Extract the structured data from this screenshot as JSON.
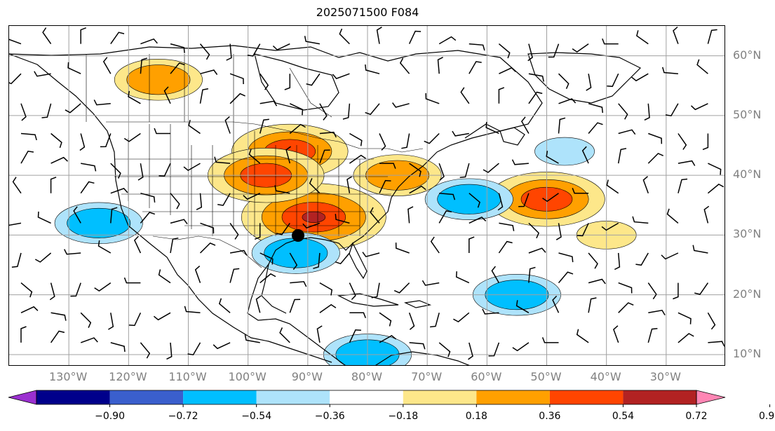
{
  "title": "2025071500 F084",
  "map": {
    "lat_labels": [
      {
        "text": "60°N",
        "lat": 60
      },
      {
        "text": "50°N",
        "lat": 50
      },
      {
        "text": "40°N",
        "lat": 40
      },
      {
        "text": "30°N",
        "lat": 30
      },
      {
        "text": "20°N",
        "lat": 20
      },
      {
        "text": "10°N",
        "lat": 10
      }
    ],
    "lon_labels": [
      {
        "text": "130°W",
        "lon": -130
      },
      {
        "text": "120°W",
        "lon": -120
      },
      {
        "text": "110°W",
        "lon": -110
      },
      {
        "text": "100°W",
        "lon": -100
      },
      {
        "text": "90°W",
        "lon": -90
      },
      {
        "text": "80°W",
        "lon": -80
      },
      {
        "text": "70°W",
        "lon": -70
      },
      {
        "text": "60°W",
        "lon": -60
      },
      {
        "text": "50°W",
        "lon": -50
      },
      {
        "text": "40°W",
        "lon": -40
      },
      {
        "text": "30°W",
        "lon": -30
      }
    ],
    "gridlines": true,
    "extent": {
      "lon_min": -140,
      "lon_max": -20,
      "lat_min": 8,
      "lat_max": 65
    }
  },
  "colorbar": {
    "ticks": [
      "−0.90",
      "−0.72",
      "−0.54",
      "−0.36",
      "−0.18",
      "0.18",
      "0.36",
      "0.54",
      "0.72",
      "0.90"
    ],
    "colors": [
      "#9b30d0",
      "#00008b",
      "#3a5fcd",
      "#00bfff",
      "#aee3fb",
      "#ffffff",
      "#fde78a",
      "#ffa000",
      "#ff4500",
      "#b22222",
      "#ff86b4"
    ],
    "extend": "both"
  },
  "chart_data": {
    "type": "heatmap",
    "title": "2025071500 F084",
    "levels": [
      -0.9,
      -0.72,
      -0.54,
      -0.36,
      -0.18,
      0.18,
      0.36,
      0.54,
      0.72,
      0.9
    ],
    "positive_regions": [
      {
        "lon": -89,
        "lat": 33,
        "peak": 0.72
      },
      {
        "lon": -93,
        "lat": 44,
        "peak": 0.54
      },
      {
        "lon": -97,
        "lat": 40,
        "peak": 0.54
      },
      {
        "lon": -50,
        "lat": 36,
        "peak": 0.54
      },
      {
        "lon": -115,
        "lat": 56,
        "peak": 0.36
      },
      {
        "lon": -75,
        "lat": 40,
        "peak": 0.36
      },
      {
        "lon": -40,
        "lat": 30,
        "peak": 0.18
      }
    ],
    "negative_regions": [
      {
        "lon": -125,
        "lat": 32,
        "peak": -0.36
      },
      {
        "lon": -63,
        "lat": 36,
        "peak": -0.36
      },
      {
        "lon": -92,
        "lat": 27,
        "peak": -0.36
      },
      {
        "lon": -80,
        "lat": 10,
        "peak": -0.36
      },
      {
        "lon": -55,
        "lat": 20,
        "peak": -0.36
      },
      {
        "lon": -47,
        "lat": 44,
        "peak": -0.18
      }
    ],
    "markers": [
      {
        "lon": -90,
        "lat": 30,
        "label": "black dot"
      }
    ]
  }
}
